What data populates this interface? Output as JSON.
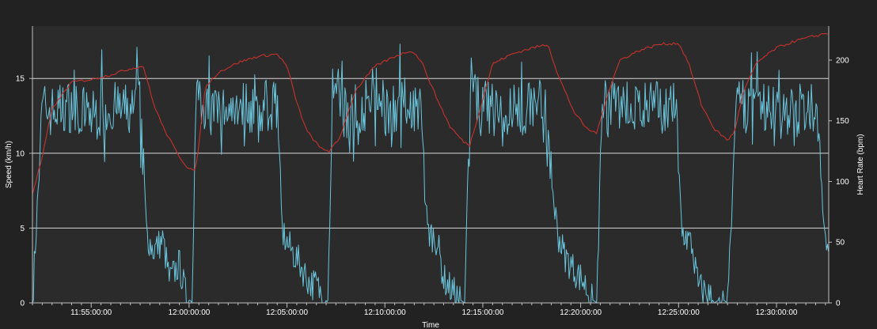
{
  "chart_data": {
    "type": "line",
    "xlabel": "Time",
    "y_left_label": "Speed (km/h)",
    "y_right_label": "Heart Rate (bpm)",
    "y_left_ticks": [
      0,
      5,
      10,
      15
    ],
    "y_right_ticks": [
      0,
      50,
      100,
      150,
      200
    ],
    "ylim_left": [
      0,
      18.5
    ],
    "ylim_right": [
      0,
      228
    ],
    "x_start": "11:52:00",
    "x_end": "12:32:40",
    "x_ticks": [
      "11:55:00:00",
      "12:00:00:00",
      "12:05:00:00",
      "12:10:00:00",
      "12:15:00:00",
      "12:20:00:00",
      "12:25:00:00",
      "12:30:00:00"
    ],
    "x_tick_times": [
      "11:55:00",
      "12:00:00",
      "12:05:00",
      "12:10:00",
      "12:15:00",
      "12:20:00",
      "12:25:00",
      "12:30:00"
    ],
    "grid": "horizontal",
    "series": [
      {
        "axis": "left",
        "color": "#6ac5dc",
        "x": [
          "11:52:00",
          "11:52:30",
          "11:53:00",
          "11:54:00",
          "11:55:00",
          "11:56:00",
          "11:57:00",
          "11:57:30",
          "11:57:50",
          "11:58:10",
          "11:58:40",
          "11:59:00",
          "11:59:30",
          "11:59:50",
          "12:00:10",
          "12:00:20",
          "12:00:50",
          "12:01:30",
          "12:02:30",
          "12:03:30",
          "12:04:30",
          "12:04:45",
          "12:05:00",
          "12:05:40",
          "12:06:10",
          "12:06:30",
          "12:06:50",
          "12:07:05",
          "12:07:20",
          "12:08:00",
          "12:09:00",
          "12:10:00",
          "12:11:00",
          "12:11:50",
          "12:12:10",
          "12:12:40",
          "12:13:00",
          "12:13:30",
          "12:13:50",
          "12:14:05",
          "12:14:20",
          "12:15:00",
          "12:16:00",
          "12:17:00",
          "12:18:00",
          "12:18:50",
          "12:19:10",
          "12:19:40",
          "12:20:10",
          "12:20:30",
          "12:20:50",
          "12:21:05",
          "12:21:20",
          "12:22:00",
          "12:23:00",
          "12:24:00",
          "12:24:50",
          "12:25:10",
          "12:25:40",
          "12:26:00",
          "12:26:30",
          "12:26:50",
          "12:27:10",
          "12:27:30",
          "12:28:00",
          "12:29:00",
          "12:30:00",
          "12:31:00",
          "12:32:00",
          "12:32:30"
        ],
        "values": [
          0,
          13,
          12.8,
          13.2,
          12.5,
          13.0,
          12.8,
          13.2,
          4.6,
          3.5,
          4.2,
          1.5,
          2.6,
          0.5,
          0,
          14.4,
          13,
          12.8,
          13.4,
          12.9,
          13.5,
          4.8,
          4.0,
          2.6,
          1.3,
          1.2,
          0.4,
          0,
          15,
          12.6,
          13.2,
          12.8,
          13.4,
          13.0,
          4.8,
          4.2,
          1.6,
          0.7,
          0.2,
          0,
          14,
          13.2,
          12.6,
          13.0,
          13.5,
          4.6,
          3.2,
          2.2,
          1.4,
          0.3,
          0,
          14.2,
          12.8,
          13.4,
          12.9,
          13.1,
          13.3,
          4.8,
          3.9,
          1.1,
          0.6,
          0,
          0.3,
          0,
          13.4,
          12.8,
          13.2,
          12.7,
          13.6,
          3.8
        ]
      },
      {
        "axis": "right",
        "color": "#c8322c",
        "x": [
          "11:52:00",
          "11:52:30",
          "11:53:00",
          "11:54:00",
          "11:55:00",
          "11:56:00",
          "11:57:00",
          "11:57:40",
          "11:58:10",
          "11:58:40",
          "11:59:20",
          "11:59:50",
          "12:00:20",
          "12:00:50",
          "12:01:30",
          "12:02:30",
          "12:03:30",
          "12:04:30",
          "12:05:00",
          "12:05:30",
          "12:06:00",
          "12:06:40",
          "12:07:10",
          "12:07:40",
          "12:08:30",
          "12:09:30",
          "12:10:30",
          "12:11:20",
          "12:11:50",
          "12:12:40",
          "12:13:20",
          "12:14:00",
          "12:14:20",
          "12:14:50",
          "12:15:30",
          "12:16:30",
          "12:17:30",
          "12:18:20",
          "12:18:50",
          "12:19:40",
          "12:20:20",
          "12:20:50",
          "12:21:20",
          "12:22:00",
          "12:23:00",
          "12:24:00",
          "12:25:00",
          "12:25:30",
          "12:26:10",
          "12:26:50",
          "12:27:30",
          "12:27:50",
          "12:28:20",
          "12:29:00",
          "12:30:00",
          "12:31:00",
          "12:32:00",
          "12:32:30"
        ],
        "values": [
          90,
          120,
          160,
          182,
          184,
          188,
          193,
          195,
          165,
          145,
          125,
          113,
          108,
          178,
          190,
          198,
          203,
          205,
          195,
          165,
          142,
          128,
          125,
          135,
          175,
          195,
          203,
          208,
          200,
          168,
          145,
          133,
          130,
          158,
          197,
          205,
          210,
          213,
          188,
          157,
          143,
          140,
          170,
          200,
          208,
          213,
          214,
          198,
          163,
          143,
          134,
          140,
          175,
          198,
          210,
          216,
          220,
          222
        ]
      }
    ]
  }
}
